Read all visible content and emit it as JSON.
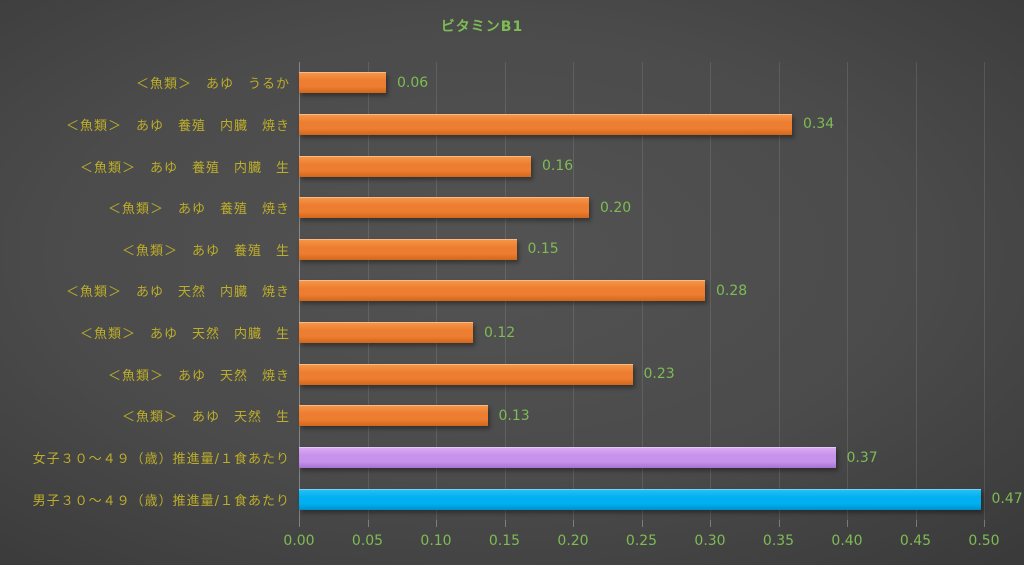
{
  "title": "ビタミンB1",
  "colors": {
    "title": "#7EBC54",
    "value_label": "#7EBC54",
    "axis_label": "#7EBC54",
    "category_label": "#BCAD2A",
    "gridline": "#5E5E5E",
    "background_center": "#535353",
    "background_edge": "#262626"
  },
  "palette": {
    "orange": {
      "light": "#F79848",
      "base": "#ED7D31",
      "dark": "#D2661A"
    },
    "purple": {
      "light": "#DCACF6",
      "base": "#C792EC",
      "dark": "#A873CF"
    },
    "blue": {
      "light": "#2BC0F6",
      "base": "#00B0F0",
      "dark": "#0090CC"
    }
  },
  "chart_data": {
    "type": "bar",
    "orientation": "horizontal",
    "title": "ビタミンB1",
    "xlabel": "",
    "ylabel": "",
    "xlim": [
      0,
      0.5
    ],
    "grid": "vertical",
    "legend": "none",
    "categories": [
      "＜魚類＞　あゆ　うるか",
      "＜魚類＞　あゆ　養殖　内臓　焼き",
      "＜魚類＞　あゆ　養殖　内臓　生",
      "＜魚類＞　あゆ　養殖　焼き",
      "＜魚類＞　あゆ　養殖　生",
      "＜魚類＞　あゆ　天然　内臓　焼き",
      "＜魚類＞　あゆ　天然　内臓　生",
      "＜魚類＞　あゆ　天然　焼き",
      "＜魚類＞　あゆ　天然　生",
      "女子３０～４９（歳）推進量/１食あたり",
      "男子３０～４９（歳）推進量/１食あたり"
    ],
    "values": [
      0.06,
      0.34,
      0.16,
      0.2,
      0.15,
      0.28,
      0.12,
      0.23,
      0.13,
      0.37,
      0.47
    ],
    "value_labels": [
      "0.06",
      "0.34",
      "0.16",
      "0.20",
      "0.15",
      "0.28",
      "0.12",
      "0.23",
      "0.13",
      "0.37",
      "0.47"
    ],
    "bar_colors": [
      "orange",
      "orange",
      "orange",
      "orange",
      "orange",
      "orange",
      "orange",
      "orange",
      "orange",
      "purple",
      "blue"
    ],
    "x_ticks": [
      "0.00",
      "0.05",
      "0.10",
      "0.15",
      "0.20",
      "0.25",
      "0.30",
      "0.35",
      "0.40",
      "0.45",
      "0.50"
    ]
  }
}
